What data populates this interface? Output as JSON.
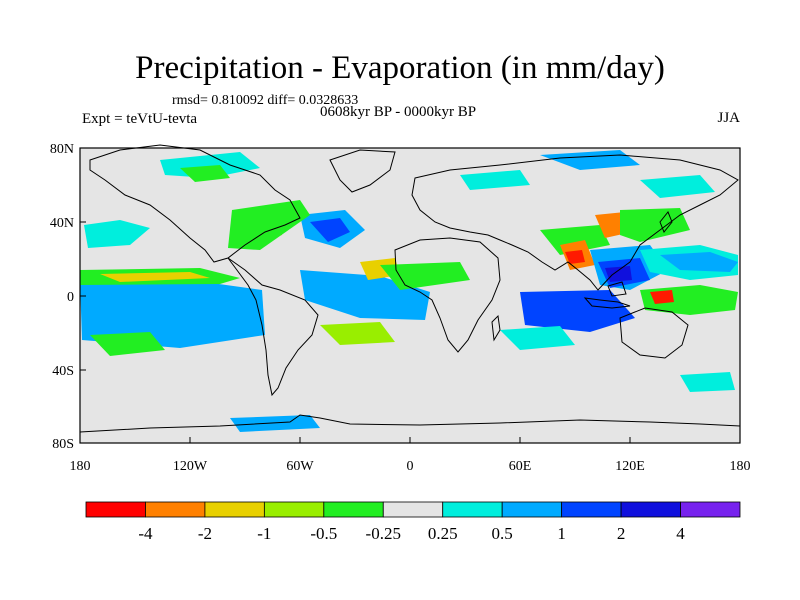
{
  "title": "Precipitation - Evaporation (in mm/day)",
  "stats": "rmsd= 0.810092 diff= 0.0328633",
  "experiment": "Expt = teVtU-tevta",
  "period": "0608kyr BP - 0000kyr BP",
  "season": "JJA",
  "lat_ticks": [
    "80N",
    "40N",
    "0",
    "40S",
    "80S"
  ],
  "lon_ticks": [
    "180",
    "120W",
    "60W",
    "0",
    "60E",
    "120E",
    "180"
  ],
  "colorbar": {
    "labels": [
      "-4",
      "-2",
      "-1",
      "-0.5",
      "-0.25",
      "0.25",
      "0.5",
      "1",
      "2",
      "4"
    ],
    "colors": [
      "#ff0000",
      "#ff8000",
      "#e8d000",
      "#99ee00",
      "#22ee22",
      "#e5e5e5",
      "#00eedd",
      "#00aaff",
      "#0044ff",
      "#1010dd",
      "#7722ee"
    ]
  },
  "map_colors": {
    "neutral": "#e5e5e5",
    "red": "#ff1a00",
    "orange": "#ff8000",
    "yellow": "#e8d000",
    "lime": "#99ee00",
    "green": "#22ee22",
    "cyan": "#00eedd",
    "lightblue": "#00aaff",
    "blue": "#0044ff",
    "darkblue": "#1010dd",
    "violet": "#7722ee"
  }
}
